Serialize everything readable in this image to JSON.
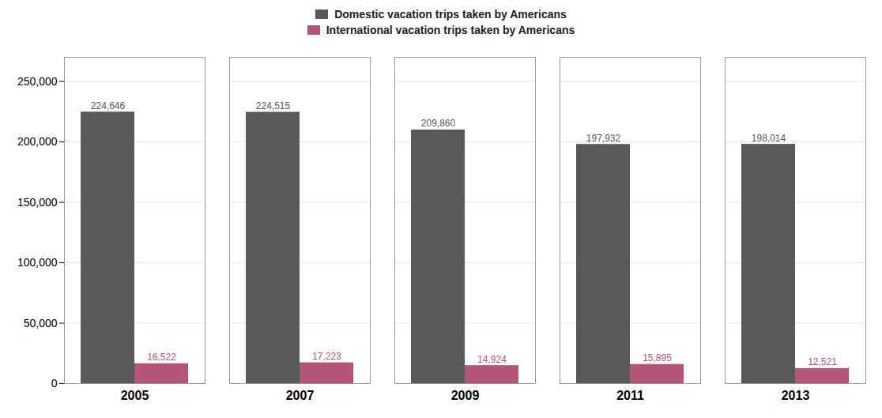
{
  "chart_data": {
    "type": "bar",
    "categories": [
      "2005",
      "2007",
      "2009",
      "2011",
      "2013"
    ],
    "series": [
      {
        "name": "Domestic vacation trips taken by Americans",
        "color": "#595959",
        "values": [
          224646,
          224515,
          209860,
          197932,
          198014
        ],
        "value_labels": [
          "224,646",
          "224,515",
          "209,860",
          "197,932",
          "198,014"
        ]
      },
      {
        "name": "International vacation trips taken by Americans",
        "color": "#B5547A",
        "values": [
          16522,
          17223,
          14924,
          15895,
          12521
        ],
        "value_labels": [
          "16,522",
          "17,223",
          "14,924",
          "15,895",
          "12,521"
        ]
      }
    ],
    "ylim": [
      0,
      270000
    ],
    "yticks": [
      0,
      {
        "value": 50000,
        "label": "50,000"
      },
      {
        "value": 100000,
        "label": "100,000"
      },
      {
        "value": 150000,
        "label": "150,000"
      },
      {
        "value": 200000,
        "label": "200,000"
      },
      {
        "value": 250000,
        "label": "250,000"
      }
    ],
    "grid": true,
    "data_labels": true,
    "legend": "top"
  }
}
